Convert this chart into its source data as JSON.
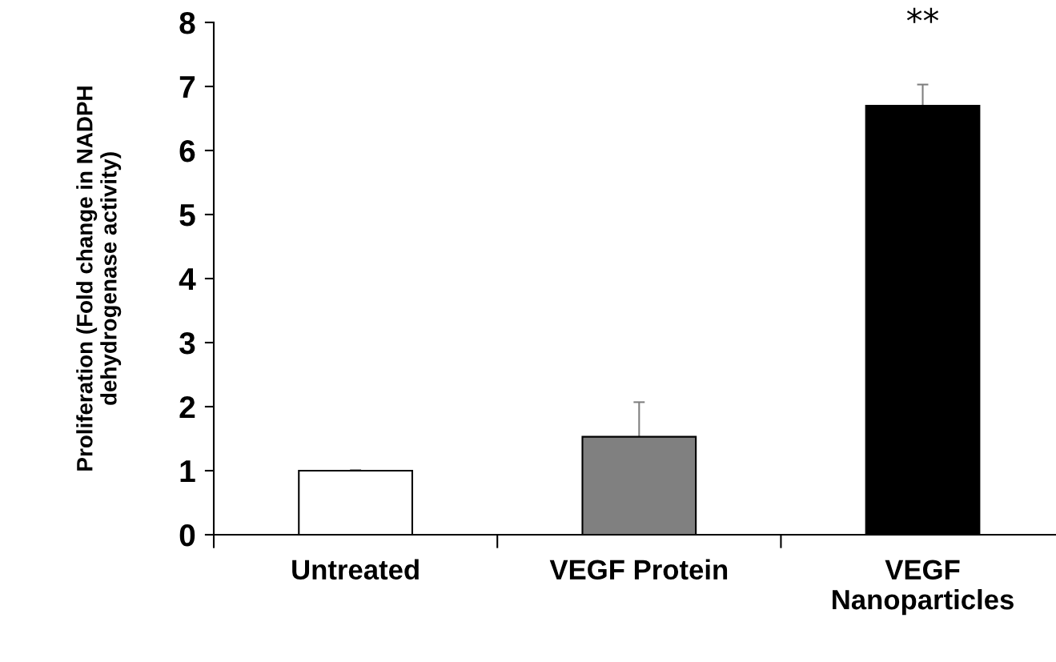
{
  "chart_data": {
    "type": "bar",
    "ylabel": "Proliferation (Fold change in NADPH\ndehydrogenase activity)",
    "categories": [
      "Untreated",
      "VEGF Protein",
      "VEGF\nNanoparticles"
    ],
    "values": [
      1.0,
      1.53,
      6.7
    ],
    "colors": [
      "#ffffff",
      "#808080",
      "#000000"
    ],
    "errors": [
      0.01,
      0.54,
      0.33
    ],
    "ylim": [
      0,
      8
    ],
    "yticks": [
      0,
      1,
      2,
      3,
      4,
      5,
      6,
      7,
      8
    ],
    "annotations": [
      "**"
    ],
    "grid": false,
    "legend": false
  }
}
